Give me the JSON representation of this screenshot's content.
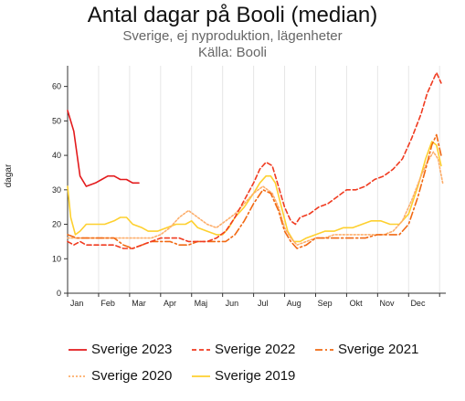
{
  "title": "Antal dagar på Booli (median)",
  "subtitle": "Sverige, ej nyproduktion, lägenheter",
  "source": "Källa: Booli",
  "chart_data": {
    "type": "line",
    "ylabel": "dagar",
    "ylim": [
      0,
      66
    ],
    "xlim": [
      0,
      12.2
    ],
    "yticks": [
      0,
      10,
      20,
      30,
      40,
      50,
      60
    ],
    "month_labels": [
      "Jan",
      "Feb",
      "Mar",
      "Apr",
      "Maj",
      "Jun",
      "Jul",
      "Aug",
      "Sep",
      "Okt",
      "Nov",
      "Dec"
    ],
    "grid": "vertical",
    "legend_position": "bottom",
    "series": [
      {
        "name": "Sverige 2023",
        "color": "#e31a1c",
        "dash": "",
        "points": [
          [
            0.0,
            53
          ],
          [
            0.2,
            47
          ],
          [
            0.4,
            34
          ],
          [
            0.6,
            31
          ],
          [
            0.9,
            32
          ],
          [
            1.1,
            33
          ],
          [
            1.3,
            34
          ],
          [
            1.5,
            34
          ],
          [
            1.7,
            33
          ],
          [
            1.9,
            33
          ],
          [
            2.1,
            32
          ],
          [
            2.3,
            32
          ]
        ]
      },
      {
        "name": "Sverige 2022",
        "color": "#f03b20",
        "dash": "5,3",
        "points": [
          [
            0.0,
            15
          ],
          [
            0.2,
            14
          ],
          [
            0.4,
            15
          ],
          [
            0.6,
            14
          ],
          [
            0.9,
            14
          ],
          [
            1.2,
            14
          ],
          [
            1.5,
            14
          ],
          [
            1.8,
            13
          ],
          [
            2.1,
            13
          ],
          [
            2.4,
            14
          ],
          [
            2.7,
            15
          ],
          [
            3.0,
            16
          ],
          [
            3.3,
            16
          ],
          [
            3.6,
            16
          ],
          [
            3.9,
            15
          ],
          [
            4.2,
            15
          ],
          [
            4.5,
            15
          ],
          [
            4.8,
            16
          ],
          [
            5.1,
            18
          ],
          [
            5.4,
            22
          ],
          [
            5.7,
            27
          ],
          [
            6.0,
            32
          ],
          [
            6.2,
            36
          ],
          [
            6.4,
            38
          ],
          [
            6.6,
            37
          ],
          [
            6.8,
            31
          ],
          [
            7.0,
            25
          ],
          [
            7.2,
            21
          ],
          [
            7.35,
            20
          ],
          [
            7.5,
            22
          ],
          [
            7.8,
            23
          ],
          [
            8.1,
            25
          ],
          [
            8.4,
            26
          ],
          [
            8.7,
            28
          ],
          [
            9.0,
            30
          ],
          [
            9.3,
            30
          ],
          [
            9.6,
            31
          ],
          [
            9.9,
            33
          ],
          [
            10.2,
            34
          ],
          [
            10.5,
            36
          ],
          [
            10.8,
            39
          ],
          [
            11.1,
            45
          ],
          [
            11.4,
            52
          ],
          [
            11.6,
            58
          ],
          [
            11.8,
            62
          ],
          [
            11.9,
            64
          ],
          [
            12.05,
            61
          ]
        ]
      },
      {
        "name": "Sverige 2021",
        "color": "#f16913",
        "dash": "8,3,2,3",
        "points": [
          [
            0.0,
            17
          ],
          [
            0.3,
            16
          ],
          [
            0.6,
            16
          ],
          [
            0.9,
            16
          ],
          [
            1.2,
            16
          ],
          [
            1.5,
            16
          ],
          [
            1.8,
            14
          ],
          [
            2.1,
            13
          ],
          [
            2.4,
            14
          ],
          [
            2.7,
            15
          ],
          [
            3.0,
            15
          ],
          [
            3.3,
            15
          ],
          [
            3.6,
            14
          ],
          [
            3.9,
            14
          ],
          [
            4.2,
            15
          ],
          [
            4.5,
            15
          ],
          [
            4.8,
            15
          ],
          [
            5.1,
            15
          ],
          [
            5.4,
            17
          ],
          [
            5.7,
            21
          ],
          [
            6.0,
            26
          ],
          [
            6.3,
            30
          ],
          [
            6.55,
            29
          ],
          [
            6.8,
            24
          ],
          [
            7.0,
            18
          ],
          [
            7.2,
            15
          ],
          [
            7.4,
            13
          ],
          [
            7.7,
            14
          ],
          [
            8.0,
            16
          ],
          [
            8.4,
            16
          ],
          [
            8.8,
            16
          ],
          [
            9.2,
            16
          ],
          [
            9.6,
            16
          ],
          [
            10.0,
            17
          ],
          [
            10.4,
            17
          ],
          [
            10.7,
            17
          ],
          [
            11.0,
            20
          ],
          [
            11.3,
            28
          ],
          [
            11.55,
            36
          ],
          [
            11.75,
            43
          ],
          [
            11.9,
            46
          ],
          [
            12.05,
            40
          ]
        ]
      },
      {
        "name": "Sverige 2020",
        "color": "#fdae6b",
        "dash": "2,2",
        "points": [
          [
            0.0,
            16
          ],
          [
            0.3,
            16
          ],
          [
            0.6,
            16
          ],
          [
            0.9,
            16
          ],
          [
            1.2,
            16
          ],
          [
            1.5,
            16
          ],
          [
            1.8,
            16
          ],
          [
            2.1,
            16
          ],
          [
            2.4,
            16
          ],
          [
            2.7,
            16
          ],
          [
            3.0,
            17
          ],
          [
            3.3,
            19
          ],
          [
            3.6,
            22
          ],
          [
            3.9,
            24
          ],
          [
            4.2,
            22
          ],
          [
            4.5,
            20
          ],
          [
            4.8,
            19
          ],
          [
            5.1,
            21
          ],
          [
            5.4,
            23
          ],
          [
            5.7,
            26
          ],
          [
            6.0,
            29
          ],
          [
            6.3,
            31
          ],
          [
            6.6,
            29
          ],
          [
            6.8,
            25
          ],
          [
            7.0,
            19
          ],
          [
            7.2,
            16
          ],
          [
            7.4,
            14
          ],
          [
            7.7,
            15
          ],
          [
            8.0,
            16
          ],
          [
            8.3,
            16
          ],
          [
            8.6,
            17
          ],
          [
            9.0,
            17
          ],
          [
            9.4,
            17
          ],
          [
            9.8,
            17
          ],
          [
            10.2,
            17
          ],
          [
            10.5,
            18
          ],
          [
            10.8,
            21
          ],
          [
            11.1,
            27
          ],
          [
            11.4,
            34
          ],
          [
            11.6,
            38
          ],
          [
            11.8,
            41
          ],
          [
            11.95,
            39
          ],
          [
            12.1,
            32
          ]
        ]
      },
      {
        "name": "Sverige 2019",
        "color": "#fed02f",
        "dash": "",
        "points": [
          [
            0.0,
            31
          ],
          [
            0.1,
            22
          ],
          [
            0.25,
            17
          ],
          [
            0.4,
            18
          ],
          [
            0.6,
            20
          ],
          [
            0.9,
            20
          ],
          [
            1.2,
            20
          ],
          [
            1.5,
            21
          ],
          [
            1.7,
            22
          ],
          [
            1.9,
            22
          ],
          [
            2.1,
            20
          ],
          [
            2.4,
            19
          ],
          [
            2.6,
            18
          ],
          [
            2.9,
            18
          ],
          [
            3.2,
            19
          ],
          [
            3.5,
            20
          ],
          [
            3.8,
            20
          ],
          [
            4.0,
            21
          ],
          [
            4.2,
            19
          ],
          [
            4.5,
            18
          ],
          [
            4.8,
            17
          ],
          [
            5.0,
            17
          ],
          [
            5.2,
            19
          ],
          [
            5.4,
            22
          ],
          [
            5.7,
            25
          ],
          [
            6.0,
            29
          ],
          [
            6.2,
            32
          ],
          [
            6.4,
            34
          ],
          [
            6.55,
            34
          ],
          [
            6.7,
            32
          ],
          [
            6.9,
            25
          ],
          [
            7.1,
            18
          ],
          [
            7.3,
            15
          ],
          [
            7.5,
            15
          ],
          [
            7.7,
            16
          ],
          [
            8.0,
            17
          ],
          [
            8.3,
            18
          ],
          [
            8.6,
            18
          ],
          [
            8.9,
            19
          ],
          [
            9.2,
            19
          ],
          [
            9.5,
            20
          ],
          [
            9.8,
            21
          ],
          [
            10.1,
            21
          ],
          [
            10.4,
            20
          ],
          [
            10.7,
            20
          ],
          [
            11.0,
            23
          ],
          [
            11.3,
            31
          ],
          [
            11.55,
            39
          ],
          [
            11.75,
            44
          ],
          [
            11.9,
            43
          ],
          [
            12.05,
            37
          ]
        ]
      }
    ]
  }
}
